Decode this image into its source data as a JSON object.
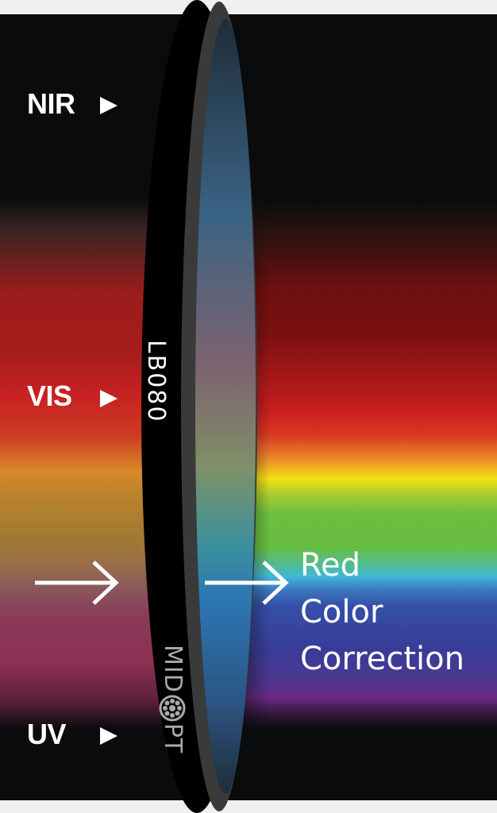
{
  "labels": {
    "nir": "NIR",
    "vis": "VIS",
    "uv": "UV"
  },
  "filter": {
    "model": "LB080",
    "brand_before_logo": "MID",
    "brand_after_logo": "PT"
  },
  "caption": [
    "Red",
    "Color",
    "Correction"
  ],
  "colors": {
    "background": "#0a0b0d",
    "ring_outer": "#000000",
    "ring_rim": "#3a3a3a",
    "text": "#ffffff",
    "brand_text": "#aaaaaa"
  }
}
